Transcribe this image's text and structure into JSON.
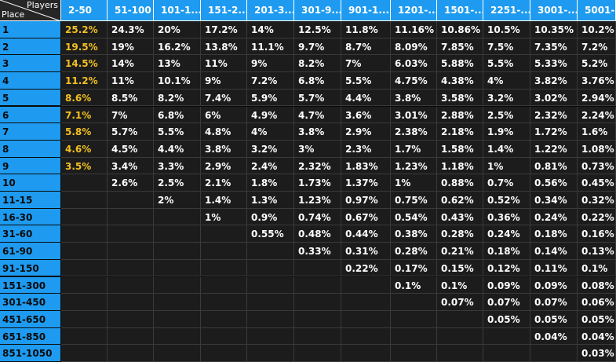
{
  "corner": {
    "players_label": "Players",
    "place_label": "Place"
  },
  "columns": [
    "2-50",
    "51-100",
    "101-1...",
    "151-2...",
    "201-3...",
    "301-9...",
    "901-1...",
    "1201-...",
    "1501-...",
    "2251-...",
    "3001-...",
    "5001-..."
  ],
  "rows": [
    {
      "place": "1",
      "values": [
        "25.2%",
        "24.3%",
        "20%",
        "17.2%",
        "14%",
        "12.5%",
        "11.8%",
        "11.16%",
        "10.86%",
        "10.5%",
        "10.35%",
        "10.2%"
      ]
    },
    {
      "place": "2",
      "values": [
        "19.5%",
        "19%",
        "16.2%",
        "13.8%",
        "11.1%",
        "9.7%",
        "8.7%",
        "8.09%",
        "7.85%",
        "7.5%",
        "7.35%",
        "7.2%"
      ]
    },
    {
      "place": "3",
      "values": [
        "14.5%",
        "14%",
        "13%",
        "11%",
        "9%",
        "8.2%",
        "7%",
        "6.03%",
        "5.88%",
        "5.5%",
        "5.33%",
        "5.2%"
      ]
    },
    {
      "place": "4",
      "values": [
        "11.2%",
        "11%",
        "10.1%",
        "9%",
        "7.2%",
        "6.8%",
        "5.5%",
        "4.75%",
        "4.38%",
        "4%",
        "3.82%",
        "3.76%"
      ]
    },
    {
      "place": "5",
      "values": [
        "8.6%",
        "8.5%",
        "8.2%",
        "7.4%",
        "5.9%",
        "5.7%",
        "4.4%",
        "3.8%",
        "3.58%",
        "3.2%",
        "3.02%",
        "2.94%"
      ]
    },
    {
      "place": "6",
      "values": [
        "7.1%",
        "7%",
        "6.8%",
        "6%",
        "4.9%",
        "4.7%",
        "3.6%",
        "3.01%",
        "2.88%",
        "2.5%",
        "2.32%",
        "2.24%"
      ]
    },
    {
      "place": "7",
      "values": [
        "5.8%",
        "5.7%",
        "5.5%",
        "4.8%",
        "4%",
        "3.8%",
        "2.9%",
        "2.38%",
        "2.18%",
        "1.9%",
        "1.72%",
        "1.6%"
      ]
    },
    {
      "place": "8",
      "values": [
        "4.6%",
        "4.5%",
        "4.4%",
        "3.8%",
        "3.2%",
        "3%",
        "2.3%",
        "1.7%",
        "1.58%",
        "1.4%",
        "1.22%",
        "1.08%"
      ]
    },
    {
      "place": "9",
      "values": [
        "3.5%",
        "3.4%",
        "3.3%",
        "2.9%",
        "2.4%",
        "2.32%",
        "1.83%",
        "1.23%",
        "1.18%",
        "1%",
        "0.81%",
        "0.73%"
      ]
    },
    {
      "place": "10",
      "values": [
        "",
        "2.6%",
        "2.5%",
        "2.1%",
        "1.8%",
        "1.73%",
        "1.37%",
        "1%",
        "0.88%",
        "0.7%",
        "0.56%",
        "0.45%"
      ]
    },
    {
      "place": "11-15",
      "values": [
        "",
        "",
        "2%",
        "1.4%",
        "1.3%",
        "1.23%",
        "0.97%",
        "0.75%",
        "0.62%",
        "0.52%",
        "0.34%",
        "0.32%"
      ]
    },
    {
      "place": "16-30",
      "values": [
        "",
        "",
        "",
        "1%",
        "0.9%",
        "0.74%",
        "0.67%",
        "0.54%",
        "0.43%",
        "0.36%",
        "0.24%",
        "0.22%"
      ]
    },
    {
      "place": "31-60",
      "values": [
        "",
        "",
        "",
        "",
        "0.55%",
        "0.48%",
        "0.44%",
        "0.38%",
        "0.28%",
        "0.24%",
        "0.18%",
        "0.16%"
      ]
    },
    {
      "place": "61-90",
      "values": [
        "",
        "",
        "",
        "",
        "",
        "0.33%",
        "0.31%",
        "0.28%",
        "0.21%",
        "0.18%",
        "0.14%",
        "0.13%"
      ]
    },
    {
      "place": "91-150",
      "values": [
        "",
        "",
        "",
        "",
        "",
        "",
        "0.22%",
        "0.17%",
        "0.15%",
        "0.12%",
        "0.11%",
        "0.1%"
      ]
    },
    {
      "place": "151-300",
      "values": [
        "",
        "",
        "",
        "",
        "",
        "",
        "",
        "0.1%",
        "0.1%",
        "0.09%",
        "0.09%",
        "0.08%"
      ]
    },
    {
      "place": "301-450",
      "values": [
        "",
        "",
        "",
        "",
        "",
        "",
        "",
        "",
        "0.07%",
        "0.07%",
        "0.07%",
        "0.06%"
      ]
    },
    {
      "place": "451-650",
      "values": [
        "",
        "",
        "",
        "",
        "",
        "",
        "",
        "",
        "",
        "0.05%",
        "0.05%",
        "0.05%"
      ]
    },
    {
      "place": "651-850",
      "values": [
        "",
        "",
        "",
        "",
        "",
        "",
        "",
        "",
        "",
        "",
        "0.04%",
        "0.04%"
      ]
    },
    {
      "place": "851-1050",
      "values": [
        "",
        "",
        "",
        "",
        "",
        "",
        "",
        "",
        "",
        "",
        "",
        "0.03%"
      ]
    }
  ],
  "colors": {
    "header_blue": "#1e9bf0",
    "highlight": "#f2c021",
    "cell_bg": "#1c1c1c",
    "grid_line": "#3a3a3a"
  }
}
